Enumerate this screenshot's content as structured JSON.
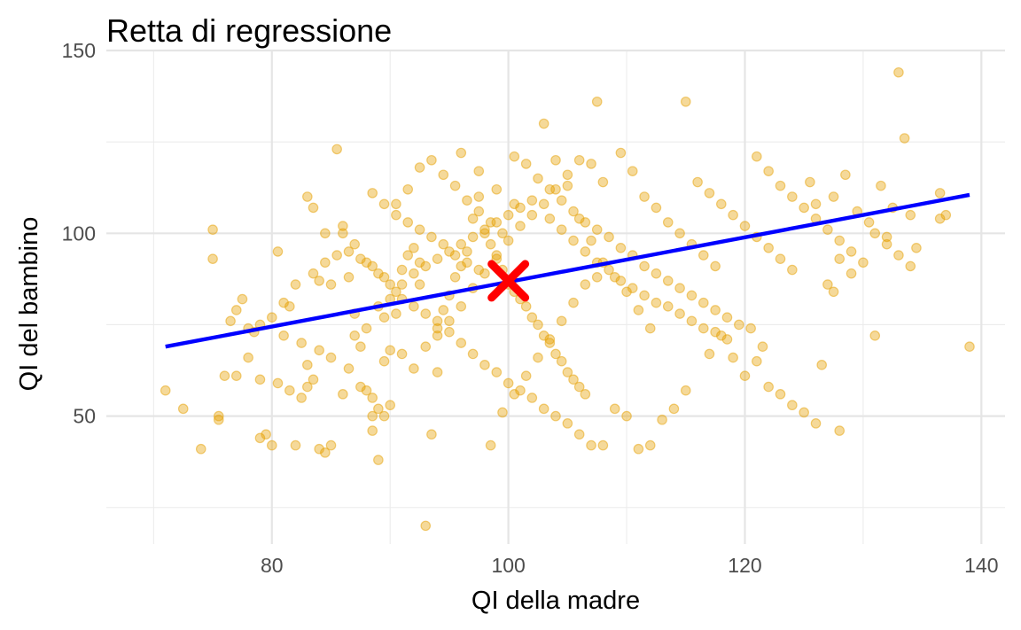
{
  "chart_data": {
    "type": "scatter",
    "title": "Retta di regressione",
    "xlabel": "QI della madre",
    "ylabel": "QI del bambino",
    "xlim": [
      66,
      142
    ],
    "ylim": [
      15,
      150
    ],
    "x_ticks": [
      80,
      100,
      120,
      140
    ],
    "y_ticks": [
      50,
      100,
      150
    ],
    "grid": true,
    "legend": "none",
    "colors": {
      "points": "#E69F00",
      "regression_line": "#0000FF",
      "mean_marker": "#FF0000",
      "grid": "#E5E5E5"
    },
    "regression_line": {
      "x": [
        71,
        139
      ],
      "y": [
        69,
        110.5
      ]
    },
    "mean_point": {
      "x": 100,
      "y": 87
    },
    "points": [
      [
        71.0,
        57
      ],
      [
        72.5,
        52
      ],
      [
        74.0,
        41
      ],
      [
        75.0,
        101
      ],
      [
        75.0,
        93
      ],
      [
        75.5,
        50
      ],
      [
        75.5,
        49
      ],
      [
        76.5,
        76
      ],
      [
        77.0,
        61
      ],
      [
        77.5,
        82
      ],
      [
        78.0,
        74
      ],
      [
        78.5,
        73
      ],
      [
        79.0,
        44
      ],
      [
        79.5,
        45
      ],
      [
        80.0,
        42
      ],
      [
        79.0,
        75
      ],
      [
        80.5,
        95
      ],
      [
        81.0,
        81
      ],
      [
        81.5,
        80
      ],
      [
        82.0,
        42
      ],
      [
        82.5,
        55
      ],
      [
        83.0,
        58
      ],
      [
        83.5,
        60
      ],
      [
        84.0,
        41
      ],
      [
        84.5,
        40
      ],
      [
        85.0,
        42
      ],
      [
        83.0,
        110
      ],
      [
        83.5,
        107
      ],
      [
        84.0,
        87
      ],
      [
        84.5,
        100
      ],
      [
        85.0,
        86
      ],
      [
        85.5,
        123
      ],
      [
        86.0,
        102
      ],
      [
        86.5,
        88
      ],
      [
        87.0,
        78
      ],
      [
        87.5,
        58
      ],
      [
        88.0,
        57
      ],
      [
        88.5,
        55
      ],
      [
        88.5,
        50
      ],
      [
        88.5,
        46
      ],
      [
        89.0,
        38
      ],
      [
        89.0,
        52
      ],
      [
        89.5,
        65
      ],
      [
        90.0,
        68
      ],
      [
        90.5,
        78
      ],
      [
        90.5,
        84
      ],
      [
        91.0,
        90
      ],
      [
        91.5,
        94
      ],
      [
        92.0,
        96
      ],
      [
        92.5,
        92
      ],
      [
        92.5,
        86
      ],
      [
        93.0,
        20
      ],
      [
        93.5,
        45
      ],
      [
        94.0,
        62
      ],
      [
        94.0,
        74
      ],
      [
        94.5,
        79
      ],
      [
        95.0,
        83
      ],
      [
        95.5,
        88
      ],
      [
        96.0,
        91
      ],
      [
        96.5,
        95
      ],
      [
        97.0,
        104
      ],
      [
        97.5,
        110
      ],
      [
        98.0,
        100
      ],
      [
        98.5,
        97
      ],
      [
        99.0,
        93
      ],
      [
        99.5,
        90
      ],
      [
        100.0,
        86
      ],
      [
        100.5,
        84
      ],
      [
        101.0,
        82
      ],
      [
        101.5,
        80
      ],
      [
        102.0,
        77
      ],
      [
        102.5,
        75
      ],
      [
        103.0,
        72
      ],
      [
        103.5,
        70
      ],
      [
        104.0,
        67
      ],
      [
        104.5,
        65
      ],
      [
        105.0,
        62
      ],
      [
        105.5,
        60
      ],
      [
        106.0,
        58
      ],
      [
        106.5,
        56
      ],
      [
        89.5,
        50
      ],
      [
        90.0,
        53
      ],
      [
        91.0,
        67
      ],
      [
        92.0,
        63
      ],
      [
        93.0,
        69
      ],
      [
        94.0,
        72
      ],
      [
        95.0,
        76
      ],
      [
        96.0,
        80
      ],
      [
        97.0,
        85
      ],
      [
        98.0,
        89
      ],
      [
        99.0,
        94
      ],
      [
        100.0,
        98
      ],
      [
        101.0,
        102
      ],
      [
        102.0,
        105
      ],
      [
        103.0,
        108
      ],
      [
        104.0,
        112
      ],
      [
        105.0,
        116
      ],
      [
        106.0,
        120
      ],
      [
        107.0,
        119
      ],
      [
        108.0,
        114
      ],
      [
        86.0,
        100
      ],
      [
        87.0,
        97
      ],
      [
        88.0,
        92
      ],
      [
        89.0,
        89
      ],
      [
        90.0,
        86
      ],
      [
        91.0,
        82
      ],
      [
        92.0,
        80
      ],
      [
        93.0,
        78
      ],
      [
        94.0,
        76
      ],
      [
        95.0,
        73
      ],
      [
        96.0,
        70
      ],
      [
        97.0,
        67
      ],
      [
        98.0,
        64
      ],
      [
        99.0,
        62
      ],
      [
        100.0,
        59
      ],
      [
        101.0,
        57
      ],
      [
        102.0,
        55
      ],
      [
        103.0,
        52
      ],
      [
        104.0,
        50
      ],
      [
        105.0,
        48
      ],
      [
        106.0,
        45
      ],
      [
        107.0,
        42
      ],
      [
        108.0,
        42
      ],
      [
        109.0,
        52
      ],
      [
        110.0,
        50
      ],
      [
        111.0,
        41
      ],
      [
        112.0,
        42
      ],
      [
        113.0,
        49
      ],
      [
        114.0,
        52
      ],
      [
        115.0,
        57
      ],
      [
        100.5,
        121
      ],
      [
        101.5,
        119
      ],
      [
        102.5,
        115
      ],
      [
        103.5,
        112
      ],
      [
        104.5,
        109
      ],
      [
        105.5,
        106
      ],
      [
        106.5,
        103
      ],
      [
        107.5,
        101
      ],
      [
        108.5,
        99
      ],
      [
        109.5,
        96
      ],
      [
        110.5,
        94
      ],
      [
        111.5,
        91
      ],
      [
        112.5,
        89
      ],
      [
        113.5,
        87
      ],
      [
        114.5,
        85
      ],
      [
        115.5,
        83
      ],
      [
        116.5,
        81
      ],
      [
        117.5,
        79
      ],
      [
        118.5,
        77
      ],
      [
        119.5,
        75
      ],
      [
        103.0,
        130
      ],
      [
        104.0,
        120
      ],
      [
        105.0,
        113
      ],
      [
        106.0,
        104
      ],
      [
        107.0,
        98
      ],
      [
        108.0,
        92
      ],
      [
        109.0,
        88
      ],
      [
        110.0,
        84
      ],
      [
        111.0,
        79
      ],
      [
        112.0,
        74
      ],
      [
        107.5,
        136
      ],
      [
        109.5,
        122
      ],
      [
        110.5,
        117
      ],
      [
        111.5,
        110
      ],
      [
        112.5,
        107
      ],
      [
        113.5,
        103
      ],
      [
        114.5,
        100
      ],
      [
        115.5,
        97
      ],
      [
        116.5,
        94
      ],
      [
        117.5,
        91
      ],
      [
        115.0,
        136
      ],
      [
        116.0,
        114
      ],
      [
        117.0,
        111
      ],
      [
        118.0,
        108
      ],
      [
        119.0,
        105
      ],
      [
        120.0,
        102
      ],
      [
        121.0,
        99
      ],
      [
        122.0,
        96
      ],
      [
        123.0,
        93
      ],
      [
        124.0,
        90
      ],
      [
        121.0,
        121
      ],
      [
        122.0,
        117
      ],
      [
        123.0,
        113
      ],
      [
        124.0,
        110
      ],
      [
        125.0,
        107
      ],
      [
        126.0,
        104
      ],
      [
        127.0,
        101
      ],
      [
        128.0,
        98
      ],
      [
        129.0,
        95
      ],
      [
        130.0,
        92
      ],
      [
        120.5,
        74
      ],
      [
        121.0,
        65
      ],
      [
        121.5,
        69
      ],
      [
        126.5,
        64
      ],
      [
        127.0,
        86
      ],
      [
        127.5,
        84
      ],
      [
        128.0,
        93
      ],
      [
        129.0,
        89
      ],
      [
        131.0,
        72
      ],
      [
        132.0,
        99
      ],
      [
        133.0,
        144
      ],
      [
        133.5,
        126
      ],
      [
        134.0,
        105
      ],
      [
        134.5,
        96
      ],
      [
        136.5,
        111
      ],
      [
        136.5,
        104
      ],
      [
        137.0,
        105
      ],
      [
        139.0,
        69
      ],
      [
        131.5,
        113
      ],
      [
        132.5,
        107
      ],
      [
        125.5,
        114
      ],
      [
        126.0,
        108
      ],
      [
        127.5,
        110
      ],
      [
        128.5,
        116
      ],
      [
        129.5,
        106
      ],
      [
        130.5,
        103
      ],
      [
        131.0,
        100
      ],
      [
        132.0,
        97
      ],
      [
        133.0,
        94
      ],
      [
        134.0,
        91
      ],
      [
        117.0,
        67
      ],
      [
        118.0,
        72
      ],
      [
        119.0,
        66
      ],
      [
        120.0,
        61
      ],
      [
        122.0,
        58
      ],
      [
        123.0,
        56
      ],
      [
        124.0,
        53
      ],
      [
        125.0,
        51
      ],
      [
        126.0,
        48
      ],
      [
        128.0,
        46
      ],
      [
        76.0,
        61
      ],
      [
        77.0,
        79
      ],
      [
        78.0,
        66
      ],
      [
        79.0,
        60
      ],
      [
        80.5,
        59
      ],
      [
        81.5,
        57
      ],
      [
        82.5,
        70
      ],
      [
        83.0,
        64
      ],
      [
        84.0,
        68
      ],
      [
        85.0,
        66
      ],
      [
        86.0,
        56
      ],
      [
        86.5,
        63
      ],
      [
        87.0,
        72
      ],
      [
        87.5,
        69
      ],
      [
        88.0,
        74
      ],
      [
        89.0,
        80
      ],
      [
        89.5,
        77
      ],
      [
        90.0,
        82
      ],
      [
        91.0,
        86
      ],
      [
        92.0,
        89
      ],
      [
        93.0,
        91
      ],
      [
        94.0,
        93
      ],
      [
        95.0,
        95
      ],
      [
        96.0,
        97
      ],
      [
        97.0,
        99
      ],
      [
        98.0,
        101
      ],
      [
        99.0,
        103
      ],
      [
        100.0,
        105
      ],
      [
        101.0,
        107
      ],
      [
        102.0,
        109
      ],
      [
        96.0,
        122
      ],
      [
        97.5,
        117
      ],
      [
        99.0,
        112
      ],
      [
        100.5,
        108
      ],
      [
        103.5,
        104
      ],
      [
        104.5,
        101
      ],
      [
        105.5,
        98
      ],
      [
        106.5,
        95
      ],
      [
        107.5,
        92
      ],
      [
        108.5,
        90
      ],
      [
        109.5,
        87
      ],
      [
        110.5,
        85
      ],
      [
        111.5,
        83
      ],
      [
        112.5,
        81
      ],
      [
        113.5,
        80
      ],
      [
        114.5,
        78
      ],
      [
        115.5,
        76
      ],
      [
        116.5,
        74
      ],
      [
        117.5,
        73
      ],
      [
        118.5,
        71
      ],
      [
        98.5,
        42
      ],
      [
        99.5,
        51
      ],
      [
        100.5,
        56
      ],
      [
        101.5,
        61
      ],
      [
        102.5,
        66
      ],
      [
        103.5,
        71
      ],
      [
        104.5,
        76
      ],
      [
        105.5,
        81
      ],
      [
        106.5,
        86
      ],
      [
        107.5,
        88
      ],
      [
        88.5,
        111
      ],
      [
        89.5,
        108
      ],
      [
        90.5,
        105
      ],
      [
        91.5,
        103
      ],
      [
        92.5,
        101
      ],
      [
        93.5,
        99
      ],
      [
        94.5,
        97
      ],
      [
        95.5,
        94
      ],
      [
        96.5,
        92
      ],
      [
        97.5,
        90
      ],
      [
        80.0,
        77
      ],
      [
        81.0,
        72
      ],
      [
        82.0,
        86
      ],
      [
        83.5,
        89
      ],
      [
        84.5,
        92
      ],
      [
        85.5,
        94
      ],
      [
        86.5,
        95
      ],
      [
        87.5,
        93
      ],
      [
        88.5,
        91
      ],
      [
        89.5,
        88
      ],
      [
        90.5,
        108
      ],
      [
        91.5,
        112
      ],
      [
        92.5,
        118
      ],
      [
        93.5,
        120
      ],
      [
        94.5,
        116
      ],
      [
        95.5,
        113
      ],
      [
        96.5,
        109
      ],
      [
        97.5,
        106
      ],
      [
        98.5,
        103
      ],
      [
        99.5,
        100
      ]
    ]
  }
}
